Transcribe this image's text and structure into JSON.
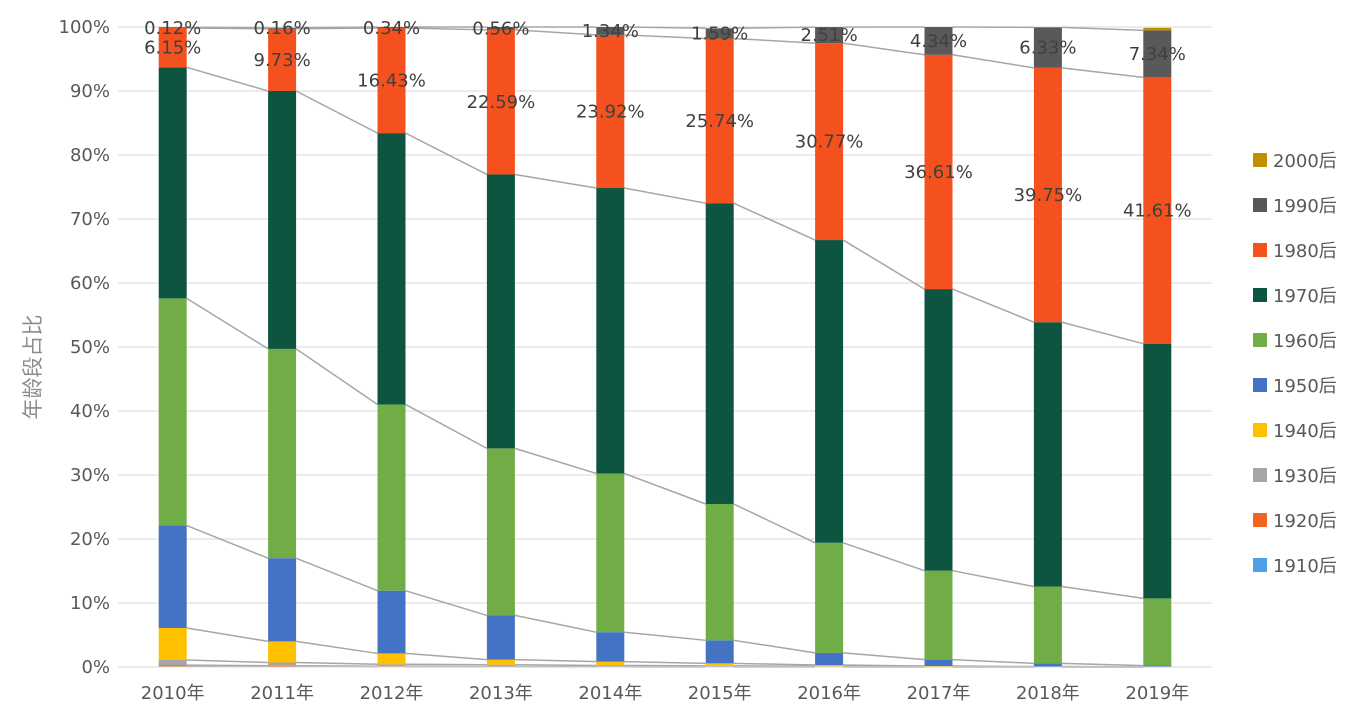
{
  "chart_data": {
    "type": "bar",
    "stacked": true,
    "title": "",
    "xlabel": "",
    "ylabel": "年龄段占比",
    "ylim": [
      0,
      100
    ],
    "yticks": [
      "0%",
      "10%",
      "20%",
      "30%",
      "40%",
      "50%",
      "60%",
      "70%",
      "80%",
      "90%",
      "100%"
    ],
    "grid": true,
    "legend_position": "right",
    "categories": [
      "2010年",
      "2011年",
      "2012年",
      "2013年",
      "2014年",
      "2015年",
      "2016年",
      "2017年",
      "2018年",
      "2019年"
    ],
    "series": [
      {
        "name": "1910后",
        "color": "#4ea1e8",
        "values": [
          0.1,
          0.05,
          0.02,
          0.01,
          0.01,
          0.0,
          0.0,
          0.0,
          0.0,
          0.0
        ]
      },
      {
        "name": "1920后",
        "color": "#f26522",
        "values": [
          0.2,
          0.15,
          0.1,
          0.05,
          0.03,
          0.02,
          0.01,
          0.0,
          0.0,
          0.0
        ]
      },
      {
        "name": "1930后",
        "color": "#a5a5a5",
        "values": [
          0.8,
          0.5,
          0.3,
          0.3,
          0.2,
          0.15,
          0.1,
          0.05,
          0.02,
          0.0
        ]
      },
      {
        "name": "1940后",
        "color": "#ffc000",
        "values": [
          5.0,
          3.3,
          1.7,
          0.8,
          0.6,
          0.4,
          0.2,
          0.1,
          0.05,
          0.02
        ]
      },
      {
        "name": "1950后",
        "color": "#4472c4",
        "values": [
          16.0,
          13.0,
          9.8,
          6.9,
          4.6,
          3.6,
          1.9,
          1.0,
          0.5,
          0.2
        ]
      },
      {
        "name": "1960后",
        "color": "#70ad47",
        "values": [
          35.5,
          32.7,
          29.1,
          26.1,
          24.8,
          21.3,
          17.2,
          13.9,
          12.0,
          10.5
        ]
      },
      {
        "name": "1970后",
        "color": "#0d5540",
        "values": [
          36.1,
          40.3,
          42.4,
          42.8,
          44.6,
          47.0,
          47.3,
          44.0,
          41.3,
          39.8
        ]
      },
      {
        "name": "1980后",
        "color": "#f4511e",
        "values": [
          6.15,
          9.73,
          16.43,
          22.59,
          23.92,
          25.74,
          30.77,
          36.61,
          39.75,
          41.61
        ]
      },
      {
        "name": "1990后",
        "color": "#595959",
        "values": [
          0.12,
          0.16,
          0.34,
          0.56,
          1.34,
          1.59,
          2.51,
          4.34,
          6.33,
          7.34
        ]
      },
      {
        "name": "2000后",
        "color": "#bf8f00",
        "values": [
          0.0,
          0.0,
          0.0,
          0.0,
          0.0,
          0.0,
          0.0,
          0.0,
          0.0,
          0.4
        ]
      }
    ],
    "data_labels": [
      {
        "series": "1990后",
        "values": [
          "0.12%",
          "0.16%",
          "0.34%",
          "0.56%",
          "1.34%",
          "1.59%",
          "2.51%",
          "4.34%",
          "6.33%",
          "7.34%"
        ]
      },
      {
        "series": "1980后",
        "values": [
          "6.15%",
          "9.73%",
          "16.43%",
          "22.59%",
          "23.92%",
          "25.74%",
          "30.77%",
          "36.61%",
          "39.75%",
          "41.61%"
        ]
      }
    ],
    "legend_order": [
      "2000后",
      "1990后",
      "1980后",
      "1970后",
      "1960后",
      "1950后",
      "1940后",
      "1930后",
      "1920后",
      "1910后"
    ],
    "colors": {
      "grid": "#d9d9d9",
      "series_lines": "#a6a6a6",
      "axis": "#d9d9d9"
    }
  }
}
